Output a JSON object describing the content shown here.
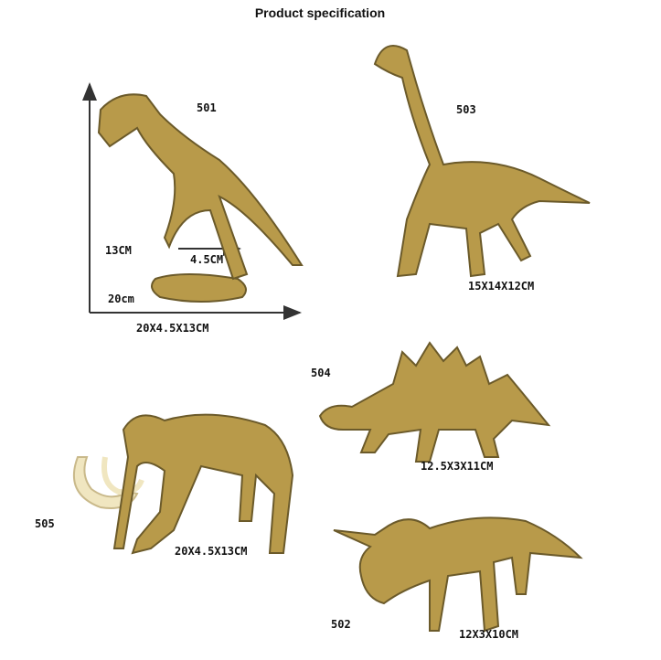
{
  "title": "Product specification",
  "colors": {
    "bone": "#b89a4a",
    "bone_dark": "#6b5a2a",
    "tusk": "#f0e6c0",
    "arrow": "#333333"
  },
  "items": [
    {
      "model": "501",
      "size": "20X4.5X13CM",
      "height_label": "13CM",
      "depth_label": "4.5CM",
      "length_label": "20cm"
    },
    {
      "model": "503",
      "size": "15X14X12CM"
    },
    {
      "model": "504",
      "size": "12.5X3X11CM"
    },
    {
      "model": "505",
      "size": "20X4.5X13CM"
    },
    {
      "model": "502",
      "size": "12X3X10CM"
    }
  ]
}
